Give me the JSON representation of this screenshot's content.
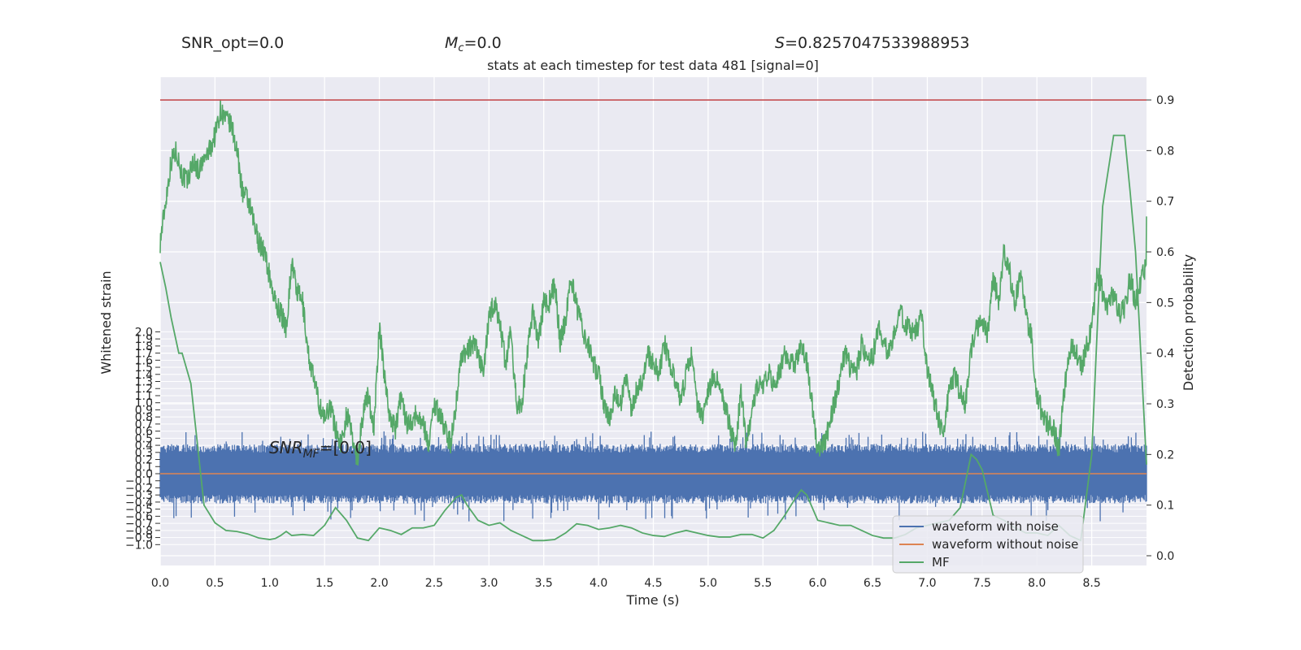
{
  "header": {
    "snr_opt": "SNR_opt=0.0",
    "mc_symbol": "M",
    "mc_sub": "c",
    "mc_value": "=0.0",
    "s_symbol": "S",
    "s_value": "=0.8257047533988953",
    "subtitle": "stats at each timestep for test data 481 [signal=0]"
  },
  "annotation": {
    "prefix": "SNR",
    "sub": "MF",
    "value": "=[0.0]"
  },
  "colors": {
    "background": "#eaeaf2",
    "grid": "#ffffff",
    "noise": "#4c72b0",
    "clean": "#dd8452",
    "mf": "#55a868",
    "threshold": "#c44e52"
  },
  "chart_data": {
    "type": "line",
    "xlabel": "Time (s)",
    "ylabel_left": "Whitened strain",
    "ylabel_right": "Detection probability",
    "xlim": [
      0.0,
      9.0
    ],
    "x_ticks": [
      "0.0",
      "0.5",
      "1.0",
      "1.5",
      "2.0",
      "2.5",
      "3.0",
      "3.5",
      "4.0",
      "4.5",
      "5.0",
      "5.5",
      "6.0",
      "6.5",
      "7.0",
      "7.5",
      "8.0",
      "8.5"
    ],
    "y_left_ticks": [
      "−1.0",
      "−0.9",
      "−0.8",
      "−0.7",
      "−0.6",
      "−0.5",
      "−0.4",
      "−0.3",
      "−0.2",
      "−0.1",
      "0.0",
      "0.1",
      "0.2",
      "0.3",
      "0.4",
      "0.5",
      "0.6",
      "0.7",
      "0.8",
      "0.9",
      "1.0",
      "1.1",
      "1.2",
      "1.3",
      "1.4",
      "1.5",
      "1.6",
      "1.7",
      "1.8",
      "1.9",
      "2.0"
    ],
    "y_right_ticks": [
      "0.0",
      "0.1",
      "0.2",
      "0.3",
      "0.4",
      "0.5",
      "0.6",
      "0.7",
      "0.8",
      "0.9"
    ],
    "y_right_lim": [
      -0.02,
      0.94
    ],
    "grid": true,
    "legend_position": "lower-right",
    "threshold": 0.9,
    "series": [
      {
        "name": "waveform with noise",
        "color": "#4c72b0"
      },
      {
        "name": "waveform without noise",
        "color": "#dd8452"
      },
      {
        "name": "MF",
        "color": "#55a868"
      }
    ],
    "noise_band": {
      "core_min": -0.3,
      "core_max": 0.3,
      "spike_min": -0.68,
      "spike_max": 0.6
    },
    "clean_value": 0.0,
    "mf_x": [
      0.0,
      0.05,
      0.1,
      0.17,
      0.2,
      0.28,
      0.3,
      0.35,
      0.4,
      0.5,
      0.6,
      0.7,
      0.8,
      0.9,
      1.0,
      1.05,
      1.1,
      1.15,
      1.2,
      1.3,
      1.4,
      1.5,
      1.6,
      1.7,
      1.8,
      1.9,
      2.0,
      2.1,
      2.2,
      2.3,
      2.4,
      2.5,
      2.6,
      2.7,
      2.75,
      2.8,
      2.9,
      3.0,
      3.1,
      3.2,
      3.3,
      3.4,
      3.5,
      3.6,
      3.7,
      3.8,
      3.9,
      4.0,
      4.1,
      4.2,
      4.3,
      4.4,
      4.5,
      4.6,
      4.7,
      4.8,
      4.9,
      5.0,
      5.1,
      5.2,
      5.3,
      5.4,
      5.5,
      5.6,
      5.7,
      5.8,
      5.85,
      5.9,
      6.0,
      6.1,
      6.2,
      6.3,
      6.4,
      6.5,
      6.6,
      6.7,
      6.8,
      6.9,
      7.0,
      7.1,
      7.2,
      7.3,
      7.4,
      7.45,
      7.5,
      7.6,
      7.7,
      7.8,
      7.9,
      8.0,
      8.1,
      8.2,
      8.3,
      8.4,
      8.5,
      8.6,
      8.7,
      8.8,
      8.85,
      8.9,
      9.0
    ],
    "mf_y": [
      0.58,
      0.53,
      0.47,
      0.4,
      0.4,
      0.34,
      0.3,
      0.2,
      0.1,
      0.065,
      0.05,
      0.048,
      0.043,
      0.035,
      0.032,
      0.034,
      0.04,
      0.048,
      0.04,
      0.042,
      0.04,
      0.06,
      0.095,
      0.07,
      0.035,
      0.03,
      0.055,
      0.05,
      0.042,
      0.055,
      0.055,
      0.06,
      0.09,
      0.115,
      0.12,
      0.1,
      0.07,
      0.06,
      0.065,
      0.05,
      0.04,
      0.03,
      0.03,
      0.032,
      0.045,
      0.063,
      0.06,
      0.052,
      0.055,
      0.06,
      0.055,
      0.045,
      0.04,
      0.038,
      0.045,
      0.05,
      0.045,
      0.04,
      0.037,
      0.037,
      0.042,
      0.042,
      0.035,
      0.05,
      0.08,
      0.115,
      0.13,
      0.12,
      0.07,
      0.065,
      0.06,
      0.06,
      0.05,
      0.04,
      0.035,
      0.035,
      0.042,
      0.055,
      0.06,
      0.065,
      0.07,
      0.095,
      0.2,
      0.19,
      0.17,
      0.08,
      0.07,
      0.055,
      0.045,
      0.045,
      0.04,
      0.06,
      0.04,
      0.03,
      0.2,
      0.69,
      0.83,
      0.83,
      0.72,
      0.6,
      0.18
    ],
    "prob_x": [
      0.0,
      0.05,
      0.1,
      0.15,
      0.2,
      0.25,
      0.3,
      0.35,
      0.4,
      0.45,
      0.5,
      0.55,
      0.6,
      0.65,
      0.7,
      0.75,
      0.8,
      0.85,
      0.9,
      0.95,
      1.0,
      1.05,
      1.1,
      1.15,
      1.2,
      1.25,
      1.3,
      1.35,
      1.4,
      1.45,
      1.5,
      1.55,
      1.6,
      1.65,
      1.7,
      1.75,
      1.8,
      1.85,
      1.9,
      1.95,
      2.0,
      2.05,
      2.1,
      2.15,
      2.2,
      2.25,
      2.3,
      2.35,
      2.4,
      2.45,
      2.5,
      2.55,
      2.6,
      2.65,
      2.7,
      2.75,
      2.8,
      2.85,
      2.9,
      2.95,
      3.0,
      3.05,
      3.1,
      3.15,
      3.2,
      3.25,
      3.3,
      3.35,
      3.4,
      3.45,
      3.5,
      3.55,
      3.6,
      3.65,
      3.7,
      3.75,
      3.8,
      3.85,
      3.9,
      3.95,
      4.0,
      4.05,
      4.1,
      4.15,
      4.2,
      4.25,
      4.3,
      4.35,
      4.4,
      4.45,
      4.5,
      4.55,
      4.6,
      4.65,
      4.7,
      4.75,
      4.8,
      4.85,
      4.9,
      4.95,
      5.0,
      5.05,
      5.1,
      5.15,
      5.2,
      5.25,
      5.3,
      5.35,
      5.4,
      5.45,
      5.5,
      5.55,
      5.6,
      5.65,
      5.7,
      5.75,
      5.8,
      5.85,
      5.9,
      5.95,
      6.0,
      6.05,
      6.1,
      6.15,
      6.2,
      6.25,
      6.3,
      6.35,
      6.4,
      6.45,
      6.5,
      6.55,
      6.6,
      6.65,
      6.7,
      6.75,
      6.8,
      6.85,
      6.9,
      6.95,
      7.0,
      7.05,
      7.1,
      7.15,
      7.2,
      7.25,
      7.3,
      7.35,
      7.4,
      7.45,
      7.5,
      7.55,
      7.6,
      7.65,
      7.7,
      7.75,
      7.8,
      7.85,
      7.9,
      7.95,
      8.0,
      8.05,
      8.1,
      8.15,
      8.2,
      8.25,
      8.3,
      8.35,
      8.4,
      8.45,
      8.5,
      8.55,
      8.6,
      8.65,
      8.7,
      8.75,
      8.8,
      8.85,
      8.9,
      8.95,
      9.0
    ],
    "prob_y": [
      0.62,
      0.7,
      0.78,
      0.8,
      0.75,
      0.74,
      0.78,
      0.76,
      0.78,
      0.8,
      0.83,
      0.88,
      0.86,
      0.85,
      0.8,
      0.72,
      0.7,
      0.66,
      0.62,
      0.6,
      0.55,
      0.5,
      0.48,
      0.45,
      0.58,
      0.52,
      0.5,
      0.4,
      0.35,
      0.3,
      0.27,
      0.3,
      0.25,
      0.22,
      0.28,
      0.24,
      0.19,
      0.28,
      0.32,
      0.25,
      0.45,
      0.35,
      0.27,
      0.25,
      0.32,
      0.26,
      0.27,
      0.28,
      0.26,
      0.22,
      0.3,
      0.28,
      0.25,
      0.22,
      0.3,
      0.4,
      0.4,
      0.42,
      0.4,
      0.36,
      0.47,
      0.5,
      0.46,
      0.38,
      0.44,
      0.3,
      0.3,
      0.4,
      0.48,
      0.42,
      0.5,
      0.5,
      0.54,
      0.42,
      0.47,
      0.55,
      0.49,
      0.45,
      0.42,
      0.38,
      0.36,
      0.3,
      0.27,
      0.32,
      0.3,
      0.35,
      0.29,
      0.33,
      0.35,
      0.4,
      0.38,
      0.36,
      0.42,
      0.38,
      0.34,
      0.3,
      0.36,
      0.4,
      0.3,
      0.28,
      0.33,
      0.35,
      0.35,
      0.3,
      0.25,
      0.22,
      0.32,
      0.22,
      0.28,
      0.34,
      0.34,
      0.36,
      0.34,
      0.36,
      0.4,
      0.38,
      0.38,
      0.42,
      0.38,
      0.3,
      0.2,
      0.22,
      0.25,
      0.3,
      0.35,
      0.4,
      0.37,
      0.36,
      0.42,
      0.38,
      0.39,
      0.45,
      0.42,
      0.4,
      0.44,
      0.48,
      0.46,
      0.44,
      0.45,
      0.47,
      0.37,
      0.32,
      0.27,
      0.24,
      0.33,
      0.36,
      0.32,
      0.3,
      0.41,
      0.45,
      0.46,
      0.44,
      0.55,
      0.5,
      0.6,
      0.56,
      0.5,
      0.55,
      0.48,
      0.43,
      0.32,
      0.28,
      0.26,
      0.25,
      0.21,
      0.33,
      0.41,
      0.41,
      0.37,
      0.41,
      0.45,
      0.56,
      0.52,
      0.49,
      0.52,
      0.48,
      0.49,
      0.55,
      0.5,
      0.54,
      0.58,
      0.62,
      0.65,
      0.67
    ]
  }
}
